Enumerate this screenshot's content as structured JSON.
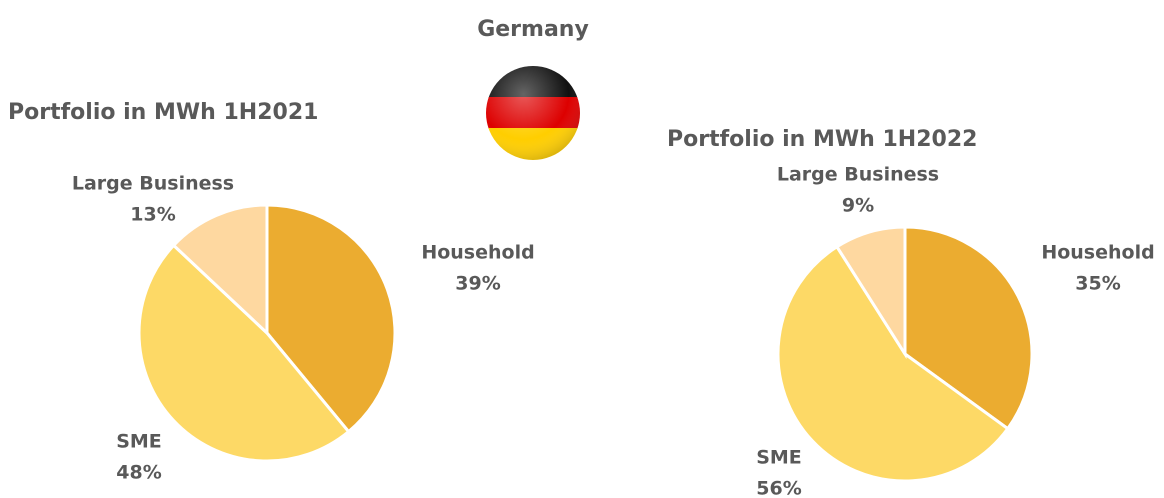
{
  "header": {
    "title": "Germany"
  },
  "chart_data": [
    {
      "type": "pie",
      "title": "Portfolio in MWh 1H2021",
      "categories": [
        "Household",
        "SME",
        "Large Business"
      ],
      "values": [
        39,
        48,
        13
      ],
      "value_labels": [
        "39%",
        "48%",
        "13%"
      ],
      "colors": [
        "#ebac30",
        "#fdd966",
        "#fed8a0"
      ]
    },
    {
      "type": "pie",
      "title": "Portfolio in MWh 1H2022",
      "categories": [
        "Household",
        "SME",
        "Large Business"
      ],
      "values": [
        35,
        56,
        9
      ],
      "value_labels": [
        "35%",
        "56%",
        "9%"
      ],
      "colors": [
        "#ebac30",
        "#fdd966",
        "#fed8a0"
      ]
    }
  ]
}
